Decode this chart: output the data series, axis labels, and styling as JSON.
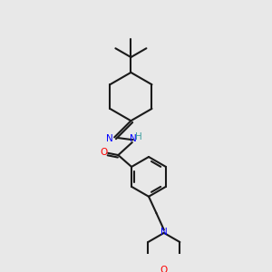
{
  "bg_color": "#e8e8e8",
  "bond_color": "#1a1a1a",
  "bond_width": 1.5,
  "fig_size": [
    3.0,
    3.0
  ],
  "dpi": 100,
  "xlim": [
    0,
    10
  ],
  "ylim": [
    0,
    10
  ]
}
